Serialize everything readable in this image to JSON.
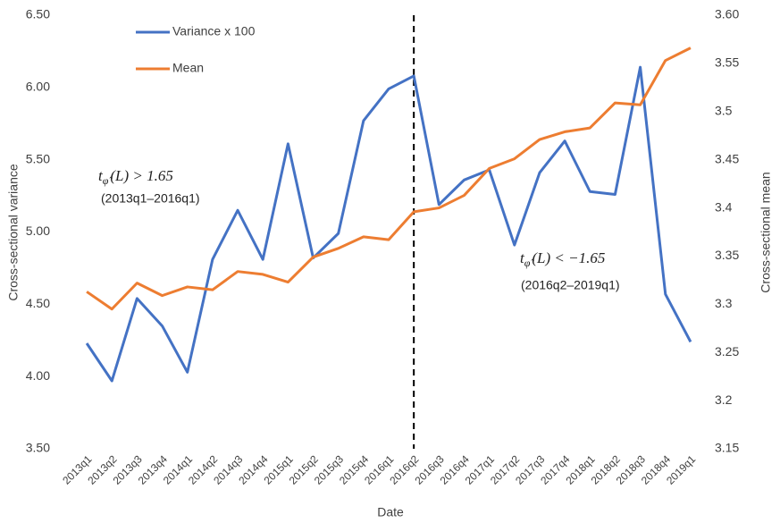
{
  "chart_data": {
    "type": "line",
    "x_label": "Date",
    "y_label": "Cross-sectional variance",
    "y2_label": "Cross-sectional mean",
    "categories": [
      "2013q1",
      "2013q2",
      "2013q3",
      "2013q4",
      "2014q1",
      "2014q2",
      "2014q3",
      "2014q4",
      "2015q1",
      "2015q2",
      "2015q3",
      "2015q4",
      "2016q1",
      "2016q2",
      "2016q3",
      "2016q4",
      "2017q1",
      "2017q2",
      "2017q3",
      "2017q4",
      "2018q1",
      "2018q2",
      "2018q3",
      "2018q4",
      "2019q1"
    ],
    "series": [
      {
        "name": "Variance x 100",
        "color": "#4472c4",
        "axis": "y",
        "values": [
          4.23,
          3.97,
          4.54,
          4.35,
          4.03,
          4.81,
          5.15,
          4.81,
          5.61,
          4.82,
          4.99,
          5.77,
          5.99,
          6.08,
          5.19,
          5.36,
          5.43,
          4.91,
          5.41,
          5.63,
          5.28,
          5.26,
          6.14,
          4.57,
          4.24
        ]
      },
      {
        "name": "Mean",
        "color": "#ed7d31",
        "axis": "y2",
        "values": [
          3.313,
          3.295,
          3.322,
          3.309,
          3.318,
          3.315,
          3.334,
          3.331,
          3.323,
          3.349,
          3.358,
          3.37,
          3.367,
          3.396,
          3.4,
          3.413,
          3.441,
          3.451,
          3.471,
          3.479,
          3.483,
          3.509,
          3.507,
          3.553,
          3.566
        ]
      }
    ],
    "ylim": [
      3.5,
      6.5
    ],
    "yticks": [
      {
        "value": 3.5,
        "label": "3.50"
      },
      {
        "value": 4,
        "label": "4.00"
      },
      {
        "value": 4.5,
        "label": "4.50"
      },
      {
        "value": 5,
        "label": "5.00"
      },
      {
        "value": 5.5,
        "label": "5.50"
      },
      {
        "value": 6,
        "label": "6.00"
      },
      {
        "value": 6.5,
        "label": "6.50"
      }
    ],
    "y2lim": [
      3.15,
      3.6
    ],
    "y2ticks": [
      3.15,
      3.2,
      3.25,
      3.3,
      3.35,
      3.4,
      3.45,
      3.5,
      3.55,
      {
        "value": 3.6,
        "label": "3.60"
      }
    ],
    "vline_category": "2016q2",
    "legend": "top-left",
    "annotations": [
      {
        "symbol": "t",
        "subscript": "φ̂",
        "text": "(L) > 1.65",
        "note": "(2013q1–2016q1)"
      },
      {
        "symbol": "t",
        "subscript": "φ̂",
        "text": "(L) < −1.65",
        "note": "(2016q2–2019q1)"
      }
    ]
  }
}
